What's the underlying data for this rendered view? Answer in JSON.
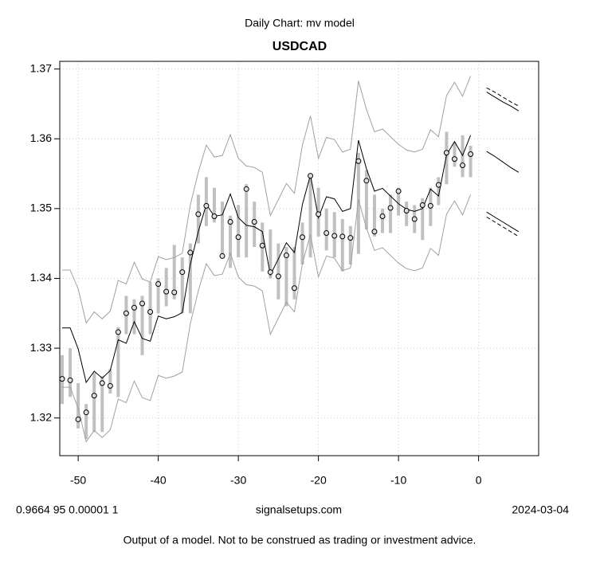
{
  "chart_data": {
    "type": "line",
    "subtitle": "Daily Chart: mv model",
    "title": "USDCAD",
    "x": [
      -52,
      -51,
      -50,
      -49,
      -48,
      -47,
      -46,
      -45,
      -44,
      -43,
      -42,
      -41,
      -40,
      -39,
      -38,
      -37,
      -36,
      -35,
      -34,
      -33,
      -32,
      -31,
      -30,
      -29,
      -28,
      -27,
      -26,
      -25,
      -24,
      -23,
      -22,
      -21,
      -20,
      -19,
      -18,
      -17,
      -16,
      -15,
      -14,
      -13,
      -12,
      -11,
      -10,
      -9,
      -8,
      -7,
      -6,
      -5,
      -4,
      -3,
      -2,
      -1
    ],
    "xlim": [
      -52.3,
      7.5
    ],
    "xticks": [
      -50,
      -40,
      -30,
      -20,
      -10,
      0
    ],
    "ylim": [
      1.3146,
      1.3711
    ],
    "yticks": [
      1.32,
      1.33,
      1.34,
      1.35,
      1.36,
      1.37
    ],
    "grid": true,
    "bars": {
      "color": "#c0c0c0",
      "high": [
        1.329,
        1.33,
        1.325,
        1.322,
        1.3265,
        1.326,
        1.327,
        1.333,
        1.3375,
        1.337,
        1.3375,
        1.3395,
        1.34,
        1.3415,
        1.3448,
        1.343,
        1.345,
        1.352,
        1.3545,
        1.353,
        1.351,
        1.349,
        1.3505,
        1.3535,
        1.351,
        1.348,
        1.347,
        1.345,
        1.3445,
        1.3445,
        1.348,
        1.355,
        1.353,
        1.35,
        1.3495,
        1.3485,
        1.3475,
        1.358,
        1.3555,
        1.352,
        1.35,
        1.352,
        1.353,
        1.351,
        1.3505,
        1.3515,
        1.353,
        1.3545,
        1.361,
        1.3595,
        1.3605,
        1.359
      ],
      "low": [
        1.322,
        1.323,
        1.3185,
        1.317,
        1.318,
        1.318,
        1.3235,
        1.323,
        1.332,
        1.332,
        1.329,
        1.332,
        1.335,
        1.336,
        1.337,
        1.335,
        1.335,
        1.345,
        1.3475,
        1.348,
        1.343,
        1.3415,
        1.343,
        1.343,
        1.3445,
        1.341,
        1.34,
        1.337,
        1.336,
        1.337,
        1.342,
        1.343,
        1.346,
        1.344,
        1.343,
        1.341,
        1.342,
        1.3435,
        1.347,
        1.346,
        1.3465,
        1.3465,
        1.349,
        1.3475,
        1.3465,
        1.3455,
        1.3475,
        1.3505,
        1.3535,
        1.356,
        1.3545,
        1.3545
      ]
    },
    "series": [
      {
        "color": "#a0a0a0",
        "values": [
          1.3412,
          1.3412,
          1.3385,
          1.3336,
          1.3352,
          1.3342,
          1.3353,
          1.3397,
          1.3392,
          1.3423,
          1.3399,
          1.3395,
          1.3431,
          1.3427,
          1.343,
          1.3436,
          1.3505,
          1.3552,
          1.3591,
          1.3574,
          1.3576,
          1.3606,
          1.3572,
          1.3561,
          1.3559,
          1.3552,
          1.349,
          1.3513,
          1.3536,
          1.3522,
          1.3591,
          1.3633,
          1.3572,
          1.3602,
          1.3599,
          1.3581,
          1.3585,
          1.3683,
          1.3642,
          1.361,
          1.3614,
          1.3603,
          1.3592,
          1.3584,
          1.3581,
          1.3585,
          1.3613,
          1.3603,
          1.3662,
          1.3681,
          1.3661,
          1.369
        ]
      },
      {
        "color": "#a0a0a0",
        "values": [
          1.3244,
          1.3244,
          1.3214,
          1.3166,
          1.3182,
          1.3172,
          1.3183,
          1.3227,
          1.3222,
          1.3253,
          1.3229,
          1.3225,
          1.3261,
          1.3257,
          1.326,
          1.3266,
          1.3335,
          1.3382,
          1.3421,
          1.3404,
          1.3406,
          1.3436,
          1.3402,
          1.3391,
          1.3389,
          1.3382,
          1.332,
          1.3343,
          1.3366,
          1.3352,
          1.3421,
          1.3463,
          1.3402,
          1.3432,
          1.3429,
          1.3411,
          1.3415,
          1.3513,
          1.3472,
          1.344,
          1.3444,
          1.3433,
          1.3422,
          1.3414,
          1.3411,
          1.3415,
          1.3443,
          1.3433,
          1.3492,
          1.3511,
          1.3491,
          1.352
        ]
      },
      {
        "color": "#000000",
        "values": [
          1.3329,
          1.3329,
          1.3299,
          1.3251,
          1.3267,
          1.3257,
          1.3268,
          1.3312,
          1.3307,
          1.3338,
          1.3314,
          1.331,
          1.3346,
          1.3342,
          1.3345,
          1.3351,
          1.342,
          1.3467,
          1.3506,
          1.3489,
          1.3491,
          1.3521,
          1.3487,
          1.3476,
          1.3474,
          1.3467,
          1.3405,
          1.3428,
          1.3451,
          1.3437,
          1.3506,
          1.3548,
          1.3487,
          1.3517,
          1.3514,
          1.3496,
          1.35,
          1.3598,
          1.3557,
          1.3525,
          1.3529,
          1.3518,
          1.3507,
          1.3499,
          1.3496,
          1.35,
          1.3528,
          1.3518,
          1.3577,
          1.3596,
          1.3576,
          1.3605
        ]
      },
      {
        "color": "#000000",
        "marker": "circle",
        "line": false,
        "values": [
          1.3256,
          1.3254,
          1.3198,
          1.3208,
          1.3232,
          1.325,
          1.3246,
          1.3323,
          1.335,
          1.3358,
          1.3364,
          1.3352,
          1.3392,
          1.3381,
          1.338,
          1.3409,
          1.3437,
          1.3492,
          1.3504,
          1.3489,
          1.3432,
          1.3481,
          1.3459,
          1.3528,
          1.3481,
          1.3447,
          1.3409,
          1.3403,
          1.3433,
          1.3386,
          1.3459,
          1.3547,
          1.3492,
          1.3465,
          1.3461,
          1.346,
          1.3458,
          1.3568,
          1.354,
          1.3467,
          1.3489,
          1.3501,
          1.3525,
          1.3497,
          1.3485,
          1.3505,
          1.3504,
          1.3534,
          1.358,
          1.3571,
          1.3562,
          1.3578
        ]
      }
    ],
    "forecast": {
      "x": [
        1,
        2,
        3,
        4,
        5
      ],
      "series": [
        {
          "color": "#000000",
          "dash": false,
          "values": [
            1.3667,
            1.366,
            1.3653,
            1.3647,
            1.364
          ]
        },
        {
          "color": "#000000",
          "dash": true,
          "values": [
            1.3673,
            1.3667,
            1.366,
            1.3653,
            1.3647
          ]
        },
        {
          "color": "#000000",
          "dash": false,
          "values": [
            1.3582,
            1.3575,
            1.3567,
            1.3559,
            1.3552
          ]
        },
        {
          "color": "#000000",
          "dash": false,
          "values": [
            1.3495,
            1.3488,
            1.3481,
            1.3474,
            1.3467
          ]
        },
        {
          "color": "#000000",
          "dash": true,
          "values": [
            1.3488,
            1.3481,
            1.3474,
            1.3467,
            1.346
          ]
        }
      ]
    }
  },
  "footer": {
    "left": "0.9664 95 0.00001 1",
    "center": "signalsetups.com",
    "right": "2024-03-04",
    "note": "Output of a model.  Not to be construed as trading or investment advice."
  }
}
